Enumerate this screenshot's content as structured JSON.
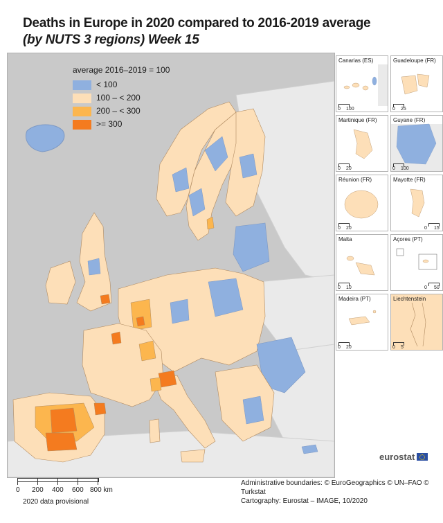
{
  "title": "Deaths in Europe in 2020 compared to 2016-2019 average",
  "subtitle": "(by NUTS 3 regions) Week 15",
  "legend": {
    "title": "average 2016–2019 = 100",
    "items": [
      {
        "label": "< 100",
        "color": "#8fb0df"
      },
      {
        "label": "100 – < 200",
        "color": "#fddfb8"
      },
      {
        "label": "200 – < 300",
        "color": "#fcb64e"
      },
      {
        "label": ">= 300",
        "color": "#f47b1f"
      }
    ]
  },
  "colors": {
    "sea": "#c9c9c9",
    "non_eu_land": "#eaeaea",
    "border": "#b08a60"
  },
  "insets": [
    {
      "label": "Canarias (ES)",
      "scale": [
        "0",
        "100"
      ]
    },
    {
      "label": "Guadeloupe (FR)",
      "scale": [
        "0",
        "25"
      ]
    },
    {
      "label": "Martinique (FR)",
      "scale": [
        "0",
        "20"
      ]
    },
    {
      "label": "Guyane (FR)",
      "scale": [
        "0",
        "100"
      ]
    },
    {
      "label": "Réunion (FR)",
      "scale": [
        "0",
        "20"
      ]
    },
    {
      "label": "Mayotte (FR)",
      "scale": [
        "0",
        "15"
      ]
    },
    {
      "label": "Malta",
      "scale": [
        "0",
        "10"
      ]
    },
    {
      "label": "Açores (PT)",
      "scale": [
        "0",
        "50"
      ]
    },
    {
      "label": "Madeira (PT)",
      "scale": [
        "0",
        "20"
      ]
    },
    {
      "label": "Liechtenstein",
      "scale": [
        "0",
        "5"
      ]
    }
  ],
  "scalebar": {
    "labels": [
      "0",
      "200",
      "400",
      "600",
      "800 km"
    ]
  },
  "provisional": "2020 data provisional",
  "footer": {
    "line1": "Administrative boundaries: © EuroGeographics © UN–FAO © Turkstat",
    "line2": "Cartography: Eurostat – IMAGE, 10/2020"
  },
  "brand": "eurostat"
}
